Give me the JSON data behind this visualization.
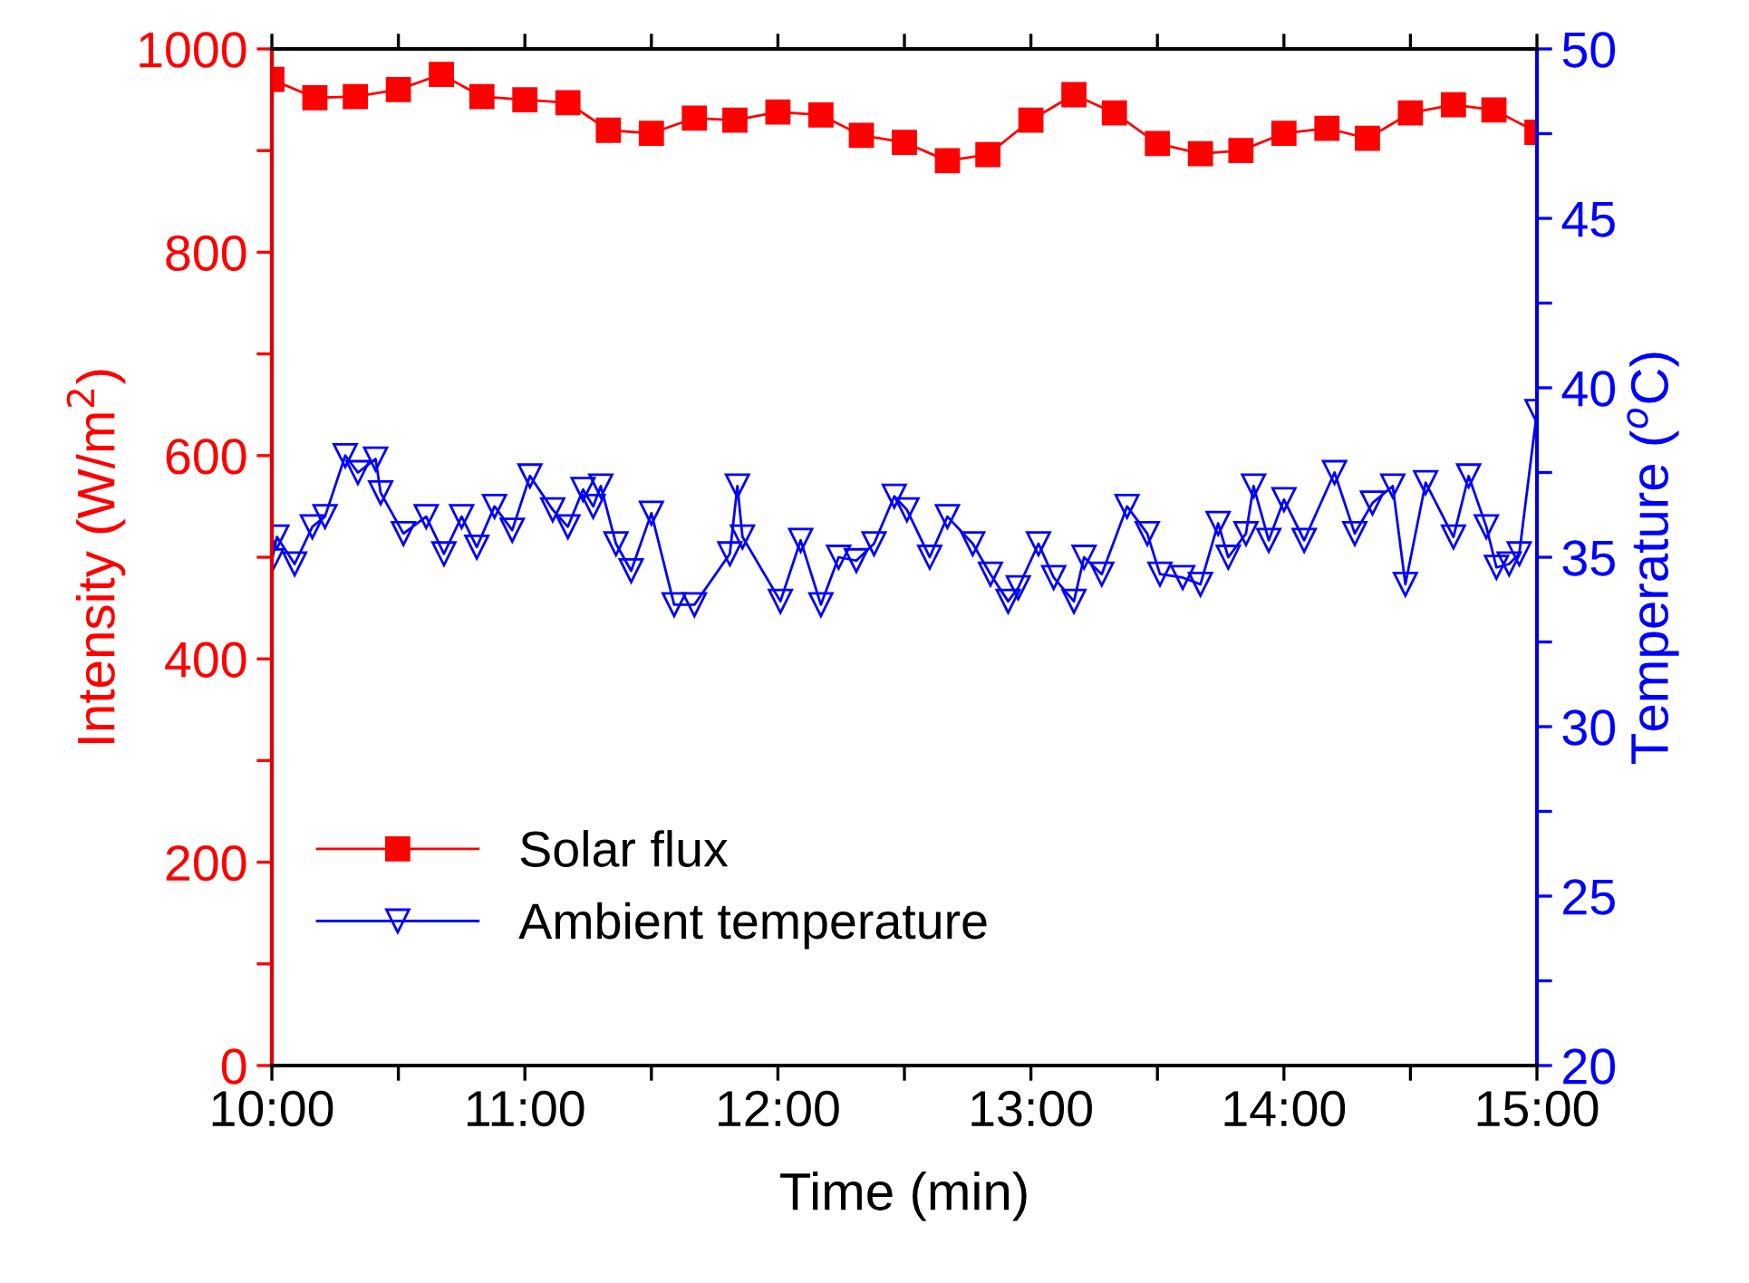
{
  "chart_data": {
    "type": "line",
    "xlabel": "Time (min)",
    "ylabel": "Intensity (W/m$^{2}$)",
    "y2label": "Temperature ($^{o}$C)",
    "xlim": [
      10,
      15
    ],
    "xticks": [
      {
        "value": 10,
        "label": "10:00"
      },
      {
        "value": 10.5,
        "label": null
      },
      {
        "value": 11,
        "label": "11:00"
      },
      {
        "value": 11.5,
        "label": null
      },
      {
        "value": 12,
        "label": "12:00"
      },
      {
        "value": 12.5,
        "label": null
      },
      {
        "value": 13,
        "label": "13:00"
      },
      {
        "value": 13.5,
        "label": null
      },
      {
        "value": 14,
        "label": "14:00"
      },
      {
        "value": 14.5,
        "label": null
      },
      {
        "value": 15,
        "label": "15:00"
      }
    ],
    "ylim": [
      0,
      1000
    ],
    "yticks": [
      0,
      {
        "value": 100,
        "label": null
      },
      200,
      {
        "value": 300,
        "label": null
      },
      400,
      {
        "value": 500,
        "label": null
      },
      600,
      {
        "value": 700,
        "label": null
      },
      800,
      {
        "value": 900,
        "label": null
      },
      1000
    ],
    "y2lim": [
      20,
      50
    ],
    "y2ticks": [
      20,
      {
        "value": 22.5,
        "label": null
      },
      25,
      {
        "value": 27.5,
        "label": null
      },
      30,
      {
        "value": 32.5,
        "label": null
      },
      35,
      {
        "value": 37.5,
        "label": null
      },
      40,
      {
        "value": 42.5,
        "label": null
      },
      45,
      {
        "value": 47.5,
        "label": null
      },
      50
    ],
    "grid": false,
    "legend": "bottom left",
    "series": [
      {
        "name": "Solar flux",
        "color": "#ff0000",
        "marker": "square",
        "x": [
          10,
          10.17,
          10.33,
          10.5,
          10.67,
          10.83,
          11,
          11.17,
          11.33,
          11.5,
          11.67,
          11.83,
          12,
          12.17,
          12.33,
          12.5,
          12.67,
          12.83,
          13,
          13.17,
          13.33,
          13.5,
          13.67,
          13.83,
          14,
          14.17,
          14.33,
          14.5,
          14.67,
          14.83,
          15
        ],
        "values": [
          970,
          952,
          953,
          960,
          975,
          953,
          950,
          947,
          920,
          917,
          932,
          930,
          938,
          935,
          915,
          908,
          890,
          896,
          930,
          955,
          937,
          907,
          897,
          900,
          917,
          922,
          912,
          937,
          945,
          940,
          918
        ]
      },
      {
        "name": "Ambient temperature",
        "color": "#0000ff",
        "marker": "triangle",
        "axis": "y2",
        "x": [
          10.0,
          10.02,
          10.09,
          10.16,
          10.21,
          10.29,
          10.34,
          10.41,
          10.43,
          10.52,
          10.61,
          10.68,
          10.75,
          10.81,
          10.88,
          10.95,
          11.02,
          11.11,
          11.17,
          11.23,
          11.27,
          11.3,
          11.36,
          11.42,
          11.5,
          11.59,
          11.67,
          11.81,
          11.84,
          11.86,
          12.01,
          12.09,
          12.17,
          12.24,
          12.31,
          12.38,
          12.46,
          12.51,
          12.6,
          12.67,
          12.77,
          12.84,
          12.91,
          12.95,
          13.03,
          13.09,
          13.17,
          13.21,
          13.28,
          13.38,
          13.46,
          13.51,
          13.6,
          13.67,
          13.74,
          13.78,
          13.85,
          13.88,
          13.94,
          14.0,
          14.08,
          14.2,
          14.28,
          14.35,
          14.43,
          14.48,
          14.56,
          14.67,
          14.73,
          14.8,
          14.84,
          14.89,
          14.93,
          15.0
        ],
        "values": [
          34.9,
          35.6,
          34.8,
          35.9,
          36.2,
          38.0,
          37.5,
          37.9,
          36.9,
          35.7,
          36.2,
          35.1,
          36.2,
          35.3,
          36.5,
          35.8,
          37.4,
          36.4,
          35.9,
          37.0,
          36.5,
          37.1,
          35.4,
          34.6,
          36.3,
          33.6,
          33.6,
          35.1,
          37.1,
          35.6,
          33.7,
          35.5,
          33.6,
          35.0,
          34.9,
          35.4,
          36.8,
          36.4,
          35.0,
          36.2,
          35.4,
          34.5,
          33.7,
          34.1,
          35.4,
          34.4,
          33.7,
          35.0,
          34.5,
          36.5,
          35.7,
          34.5,
          34.4,
          34.2,
          36.0,
          35.0,
          35.7,
          37.1,
          35.5,
          36.7,
          35.5,
          37.5,
          35.7,
          36.6,
          37.1,
          34.2,
          37.2,
          35.6,
          37.4,
          35.9,
          34.7,
          34.8,
          35.1,
          39.3
        ]
      }
    ]
  }
}
